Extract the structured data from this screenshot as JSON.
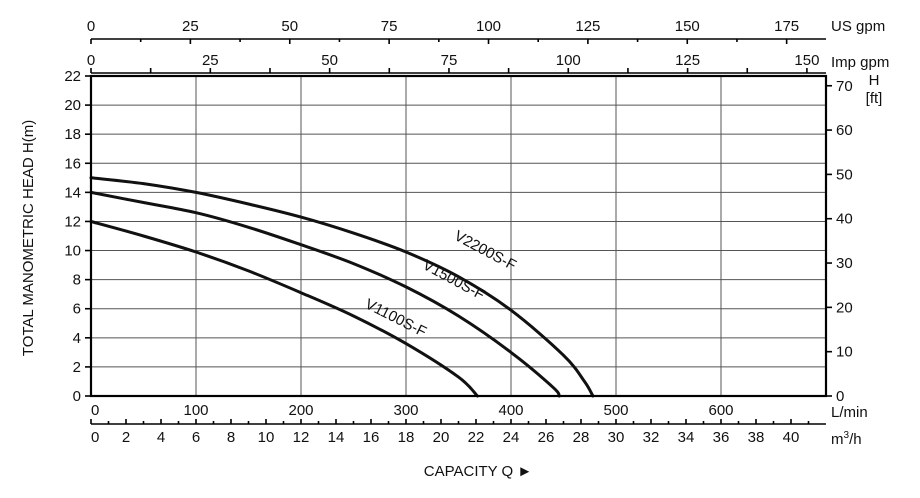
{
  "chart_data": {
    "type": "line",
    "ylabel": "TOTAL MANOMETRIC HEAD  H(m)",
    "xlabel": "CAPACITY  Q ►",
    "grid": true,
    "axes": {
      "flow_lmin": {
        "unit": "L/min",
        "range": [
          0,
          700
        ],
        "ticks": [
          "0",
          "100",
          "200",
          "300",
          "400",
          "500",
          "600"
        ]
      },
      "flow_m3h": {
        "unit": "m³/h",
        "range": [
          0,
          42
        ],
        "ticks": [
          "0",
          "2",
          "4",
          "6",
          "8",
          "10",
          "12",
          "14",
          "16",
          "18",
          "20",
          "22",
          "24",
          "26",
          "28",
          "30",
          "32",
          "34",
          "36",
          "38",
          "40"
        ]
      },
      "us_gpm": {
        "unit": "US gpm",
        "range": [
          0,
          184.9
        ],
        "ticks": [
          "0",
          "25",
          "50",
          "75",
          "100",
          "125",
          "150",
          "175"
        ]
      },
      "imp_gpm": {
        "unit": "Imp gpm",
        "range": [
          0,
          154
        ],
        "ticks": [
          "0",
          "25",
          "50",
          "75",
          "100",
          "125",
          "150"
        ]
      },
      "head_m": {
        "unit": "H(m)",
        "range": [
          0,
          22
        ],
        "ticks": [
          "0",
          "2",
          "4",
          "6",
          "8",
          "10",
          "12",
          "14",
          "16",
          "18",
          "20",
          "22"
        ]
      },
      "head_ft": {
        "unit_lines": [
          "H",
          "[ft]"
        ],
        "range": [
          0,
          72.2
        ],
        "ticks": [
          "0",
          "10",
          "20",
          "30",
          "40",
          "50",
          "60",
          "70"
        ]
      }
    },
    "series": [
      {
        "name": "V1100S-F",
        "x_lmin": [
          0,
          50,
          100,
          150,
          200,
          250,
          300,
          350,
          368
        ],
        "y_m": [
          12,
          11,
          9.9,
          8.6,
          7.1,
          5.5,
          3.6,
          1.3,
          0
        ]
      },
      {
        "name": "V1500S-F",
        "x_lmin": [
          0,
          50,
          100,
          150,
          200,
          250,
          300,
          350,
          400,
          440,
          446
        ],
        "y_m": [
          14,
          13.3,
          12.6,
          11.6,
          10.4,
          9.1,
          7.5,
          5.5,
          3.0,
          0.6,
          0
        ]
      },
      {
        "name": "V2200S-F",
        "x_lmin": [
          0,
          50,
          100,
          150,
          200,
          250,
          300,
          350,
          400,
          450,
          470,
          478
        ],
        "y_m": [
          15,
          14.6,
          14,
          13.2,
          12.3,
          11.2,
          9.9,
          8.2,
          5.9,
          2.8,
          1.0,
          0
        ]
      }
    ]
  }
}
